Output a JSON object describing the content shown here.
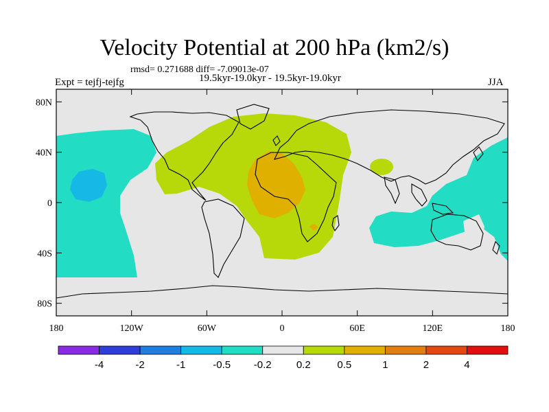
{
  "title": "Velocity Potential at 200 hPa (km2/s)",
  "stats_line": "rmsd= 0.271688 diff= -7.09013e-07",
  "period_line": "19.5kyr-19.0kyr - 19.5kyr-19.0kyr",
  "experiment": "Expt = tejfj-tejfg",
  "season": "JJA",
  "map": {
    "projection": "cylindrical-equidistant",
    "lon_range": [
      -180,
      180
    ],
    "lat_range": [
      -90,
      90
    ],
    "lat_ticks": [
      {
        "value": 80,
        "label": "80N"
      },
      {
        "value": 40,
        "label": "40N"
      },
      {
        "value": 0,
        "label": "0"
      },
      {
        "value": -40,
        "label": "40S"
      },
      {
        "value": -80,
        "label": "80S"
      }
    ],
    "lon_ticks": [
      {
        "value": -180,
        "label": "180"
      },
      {
        "value": -120,
        "label": "120W"
      },
      {
        "value": -60,
        "label": "60W"
      },
      {
        "value": 0,
        "label": "0"
      },
      {
        "value": 60,
        "label": "60E"
      },
      {
        "value": 120,
        "label": "120E"
      },
      {
        "value": 180,
        "label": "180"
      }
    ]
  },
  "colorbar": {
    "colors": [
      "#8a2be2",
      "#2f3fd6",
      "#1e7fe0",
      "#16b8e6",
      "#22dcc4",
      "#e6e6e6",
      "#b7d90a",
      "#e0b000",
      "#e07f10",
      "#e04a10",
      "#e01010"
    ],
    "labels": [
      "-4",
      "-2",
      "-1",
      "-0.5",
      "-0.2",
      "0.2",
      "0.5",
      "1",
      "2",
      "4"
    ]
  }
}
